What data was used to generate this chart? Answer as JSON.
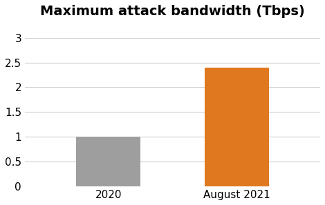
{
  "title": "Maximum attack bandwidth (Tbps)",
  "categories": [
    "2020",
    "August 2021"
  ],
  "values": [
    1.0,
    2.4
  ],
  "bar_colors": [
    "#9E9E9E",
    "#E07820"
  ],
  "ylim": [
    0,
    3.3
  ],
  "yticks": [
    0,
    0.5,
    1.0,
    1.5,
    2.0,
    2.5,
    3.0
  ],
  "title_fontsize": 14,
  "tick_fontsize": 11,
  "background_color": "#FFFFFF",
  "bar_width": 0.5,
  "grid_color": "#D0D0D0",
  "figsize": [
    4.7,
    2.97
  ],
  "dpi": 100
}
